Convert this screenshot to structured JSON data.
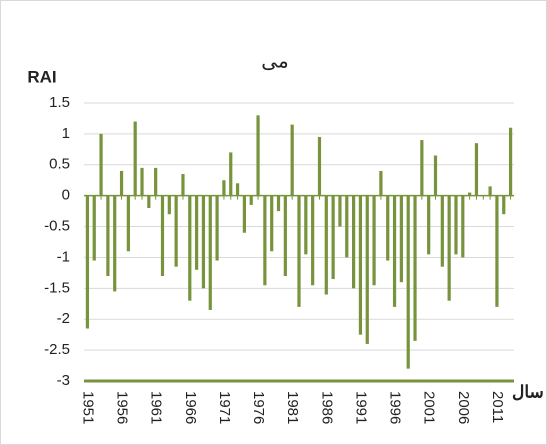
{
  "chart_data": {
    "type": "bar",
    "title": "می",
    "y_label": "RAI",
    "x_label": "سال",
    "categories": [
      "1951",
      null,
      null,
      null,
      null,
      "1956",
      null,
      null,
      null,
      null,
      "1961",
      null,
      null,
      null,
      null,
      "1966",
      null,
      null,
      null,
      null,
      "1971",
      null,
      null,
      null,
      null,
      "1976",
      null,
      null,
      null,
      null,
      "1981",
      null,
      null,
      null,
      null,
      "1986",
      null,
      null,
      null,
      null,
      "1991",
      null,
      null,
      null,
      null,
      "1996",
      null,
      null,
      null,
      null,
      "2001",
      null,
      null,
      null,
      null,
      "2006",
      null,
      null,
      null,
      null,
      "2011",
      null,
      null
    ],
    "values": [
      -2.15,
      -1.05,
      1.0,
      -1.3,
      -1.55,
      0.4,
      -0.9,
      1.2,
      0.45,
      -0.2,
      0.45,
      -1.3,
      -0.3,
      -1.15,
      0.35,
      -1.7,
      -1.2,
      -1.5,
      -1.85,
      -1.05,
      0.25,
      0.7,
      0.2,
      -0.6,
      -0.15,
      1.3,
      -1.45,
      -0.9,
      -0.25,
      -1.3,
      1.15,
      -1.8,
      -0.95,
      -1.45,
      0.95,
      -1.6,
      -1.35,
      -0.5,
      -1.0,
      -1.5,
      -2.25,
      -2.4,
      -1.45,
      0.4,
      -1.05,
      -1.8,
      -1.4,
      -2.8,
      -2.35,
      0.9,
      -0.95,
      0.65,
      -1.15,
      -1.7,
      -0.95,
      -1.0,
      0.05,
      0.85,
      0.0,
      0.15,
      -1.8,
      -0.3,
      1.1
    ],
    "color": "#77933c",
    "ylim": [
      -3,
      1.5
    ],
    "yticks": [
      1.5,
      1,
      0.5,
      0,
      -0.5,
      -1,
      -1.5,
      -2,
      -2.5,
      -3
    ],
    "grid": true
  }
}
